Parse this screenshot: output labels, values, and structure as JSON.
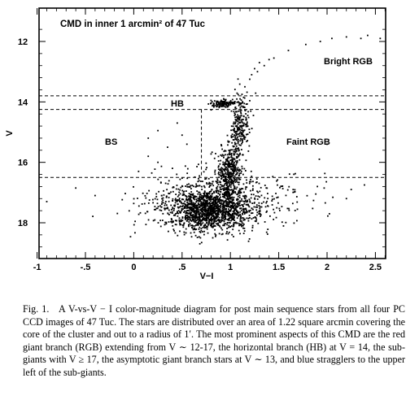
{
  "figure": {
    "plot_title": "CMD in inner 1 arcmin² of 47 Tuc",
    "regions": {
      "bright_rgb": "Bright RGB",
      "hb": "HB",
      "bs": "BS",
      "faint_rgb": "Faint RGB"
    }
  },
  "caption": {
    "label": "Fig. 1.",
    "text": "A V-vs-V − I color-magnitude diagram for post main sequence stars from all four PC CCD images of 47 Tuc. The stars are distributed over an area of 1.22 square arcmin covering the core of the cluster and out to a radius of 1′. The most prominent aspects of this CMD are the red giant branch (RGB) extending from V ∼ 12-17, the horizontal branch (HB) at V = 14, the sub-giants with V ≥ 17, the asymptotic giant branch stars at V ∼ 13, and blue stragglers to the upper left of the sub-giants."
  },
  "chart_data": {
    "type": "scatter",
    "title": "CMD in inner 1 arcmin² of 47 Tuc",
    "xlabel": "V−I",
    "ylabel": "V",
    "xlim": [
      -1,
      2.7
    ],
    "ylim": [
      17.2,
      11.5
    ],
    "y_inverted": true,
    "x_ticks": [
      "-1",
      "-.5",
      "0",
      ".5",
      "1",
      "1.5",
      "2",
      "2.5"
    ],
    "x_tick_values": [
      -1,
      -0.5,
      0,
      0.5,
      1,
      1.5,
      2,
      2.5
    ],
    "y_ticks": [
      "12",
      "14",
      "16",
      "18"
    ],
    "y_tick_values": [
      12,
      14,
      16,
      18
    ],
    "boundaries": {
      "horizontal_dashed_V": [
        13.8,
        14.25,
        16.5
      ],
      "vertical_dashed_VI": 0.7,
      "vertical_dashed_V_range": [
        14.25,
        16.5
      ]
    },
    "region_labels": [
      {
        "name": "Bright RGB",
        "x": 2.0,
        "y": 12.7
      },
      {
        "name": "HB",
        "x": 0.45,
        "y": 14.05
      },
      {
        "name": "BS",
        "x": -0.1,
        "y": 15.55
      },
      {
        "name": "Faint RGB",
        "x": 1.35,
        "y": 15.55
      }
    ],
    "series": [
      {
        "values_description_free": true,
        "points": [
          [
            1.93,
            12.0
          ],
          [
            2.05,
            11.9
          ],
          [
            2.2,
            11.85
          ],
          [
            2.35,
            11.9
          ],
          [
            2.42,
            11.8
          ],
          [
            2.55,
            11.9
          ],
          [
            1.78,
            12.1
          ],
          [
            1.6,
            12.3
          ],
          [
            1.45,
            12.55
          ],
          [
            1.35,
            12.8
          ],
          [
            1.28,
            13.0
          ],
          [
            1.2,
            13.25
          ],
          [
            1.15,
            13.5
          ],
          [
            1.12,
            13.75
          ],
          [
            1.25,
            12.9
          ],
          [
            1.4,
            12.6
          ],
          [
            1.3,
            12.7
          ],
          [
            1.22,
            13.1
          ],
          [
            1.1,
            13.9
          ],
          [
            1.05,
            14.2
          ],
          [
            2.0,
            15.4
          ],
          [
            2.25,
            16.9
          ],
          [
            2.2,
            17.2
          ],
          [
            1.9,
            16.8
          ],
          [
            0.15,
            15.2
          ],
          [
            0.25,
            14.95
          ],
          [
            0.45,
            14.7
          ],
          [
            0.5,
            15.1
          ],
          [
            0.35,
            15.5
          ],
          [
            0.25,
            16.0
          ],
          [
            0.15,
            15.8
          ],
          [
            0.55,
            15.4
          ],
          [
            0.4,
            16.2
          ],
          [
            0.05,
            16.3
          ],
          [
            -0.6,
            16.85
          ],
          [
            -0.4,
            17.1
          ],
          [
            -0.9,
            17.3
          ]
        ],
        "clusters": [
          {
            "name": "subgiant_turnoff",
            "center": [
              0.78,
              17.55
            ],
            "spread": [
              0.22,
              0.35
            ],
            "count": 1400
          },
          {
            "name": "rgb_lower",
            "center": [
              0.98,
              16.4
            ],
            "spread": [
              0.06,
              0.45
            ],
            "count": 380
          },
          {
            "name": "rgb_upper",
            "center": [
              1.05,
              14.9
            ],
            "spread": [
              0.05,
              0.55
            ],
            "count": 260
          },
          {
            "name": "hb_clump",
            "center": [
              0.92,
              14.05
            ],
            "spread": [
              0.06,
              0.06
            ],
            "count": 120
          },
          {
            "name": "wide_scatter",
            "center": [
              0.9,
              17.3
            ],
            "spread": [
              0.45,
              0.55
            ],
            "count": 420
          }
        ]
      }
    ]
  }
}
